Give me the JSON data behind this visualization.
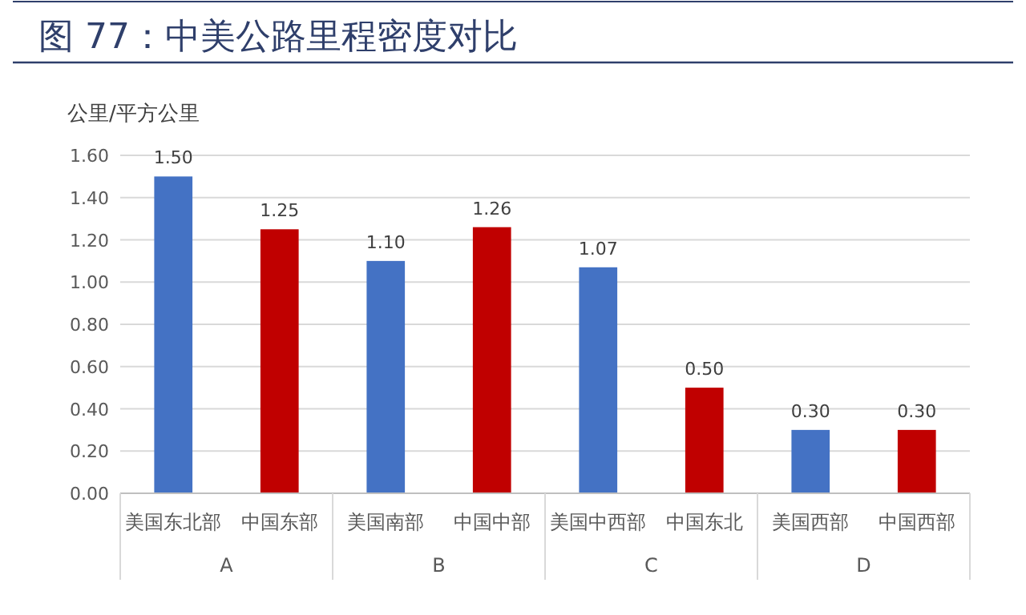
{
  "chart_data": {
    "type": "bar",
    "title": "图 77：中美公路里程密度对比",
    "ylabel": "公里/平方公里",
    "categories": [
      "美国东北部",
      "中国东部",
      "美国南部",
      "中国中部",
      "美国中西部",
      "中国东北",
      "美国西部",
      "中国西部"
    ],
    "values": [
      1.5,
      1.25,
      1.1,
      1.26,
      1.07,
      0.5,
      0.3,
      0.3
    ],
    "colors": [
      "#4472c4",
      "#c00000",
      "#4472c4",
      "#c00000",
      "#4472c4",
      "#c00000",
      "#4472c4",
      "#c00000"
    ],
    "value_labels": [
      "1.50",
      "1.25",
      "1.10",
      "1.26",
      "1.07",
      "0.50",
      "0.30",
      "0.30"
    ],
    "annotations": [
      "A",
      "B",
      "C",
      "D"
    ],
    "ylim": [
      0,
      1.6
    ],
    "yticks": [
      {
        "value": 0,
        "label": "0.00"
      },
      {
        "value": 0.2,
        "label": "0.20"
      },
      {
        "value": 0.4,
        "label": "0.40"
      },
      {
        "value": 0.6,
        "label": "0.60"
      },
      {
        "value": 0.8,
        "label": "0.80"
      },
      {
        "value": 1,
        "label": "1.00"
      },
      {
        "value": 1.2,
        "label": "1.20"
      },
      {
        "value": 1.4,
        "label": "1.40"
      },
      {
        "value": 1.6,
        "label": "1.60"
      }
    ],
    "grid": "y"
  }
}
